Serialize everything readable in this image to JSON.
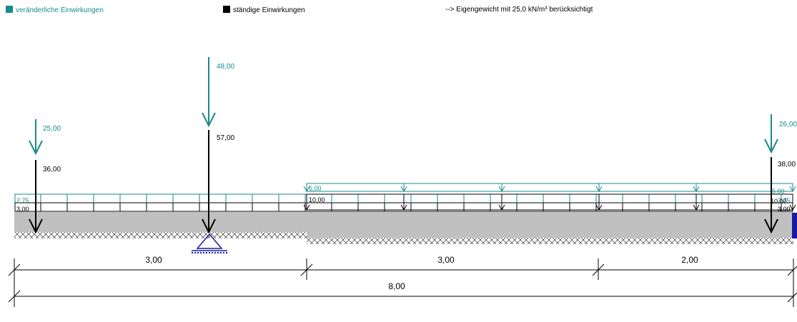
{
  "legend": {
    "variable_label": "veränderliche Einwirkungen",
    "permanent_label": "ständige Einwirkungen",
    "note": "--> Eigengewicht mit 25,0 kN/m³ berücksichtigt"
  },
  "colors": {
    "variable": "#1a8a8a",
    "permanent": "#000000",
    "beam": "#c0c0c0",
    "support": "#1a1aa0"
  },
  "point_loads": [
    {
      "id": "left",
      "variable": "25,00",
      "permanent": "36,00"
    },
    {
      "id": "mid",
      "variable": "48,00",
      "permanent": "57,00"
    },
    {
      "id": "right",
      "variable": "26,00",
      "permanent": "38,00"
    }
  ],
  "line_loads": {
    "full_variable_left": "2,75",
    "full_variable_right": "2,75",
    "full_permanent_left": "3,00",
    "full_permanent_right": "3,00",
    "partial_variable_left": "5,00",
    "partial_variable_right": "5,00",
    "partial_permanent_left": "10,00",
    "partial_permanent_right": "10,00"
  },
  "dimensions": {
    "segments": [
      "3,00",
      "3,00",
      "2,00"
    ],
    "total": "8,00"
  }
}
